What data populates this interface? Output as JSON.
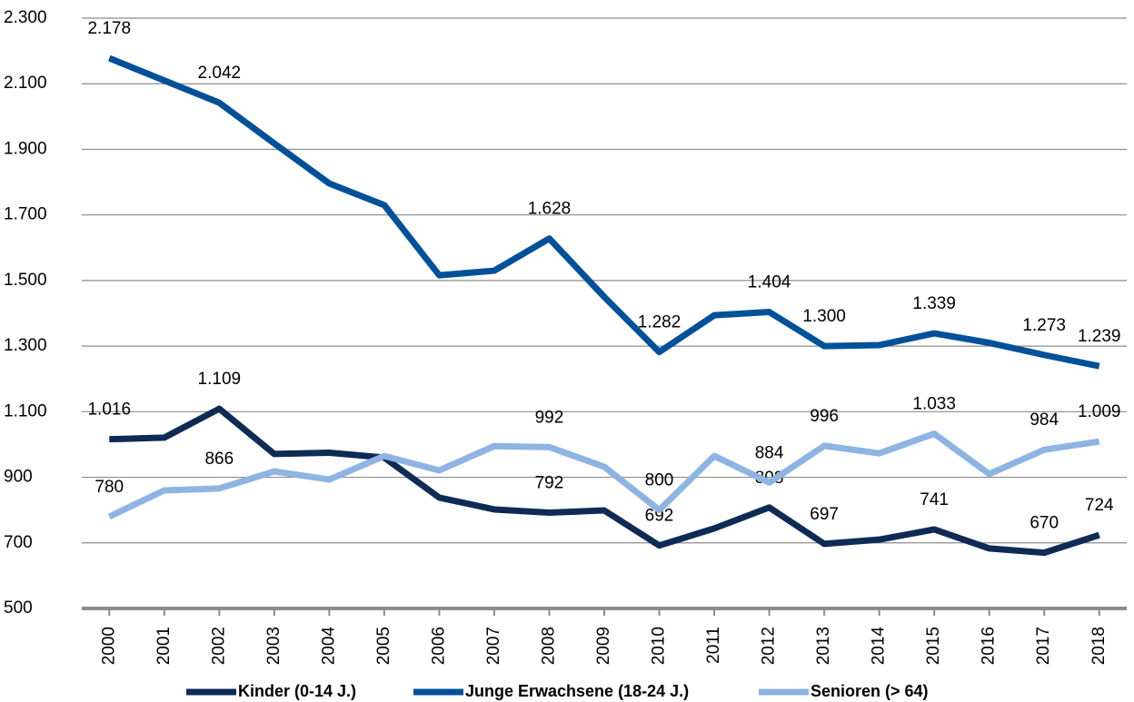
{
  "chart_data": {
    "type": "line",
    "categories": [
      "2000",
      "2001",
      "2002",
      "2003",
      "2004",
      "2005",
      "2006",
      "2007",
      "2008",
      "2009",
      "2010",
      "2011",
      "2012",
      "2013",
      "2014",
      "2015",
      "2016",
      "2017",
      "2018"
    ],
    "series": [
      {
        "name": "Kinder (0-14 J.)",
        "color": "#0d2b55",
        "values": [
          1016,
          1021,
          1109,
          971,
          975,
          960,
          838,
          802,
          792,
          799,
          692,
          744,
          808,
          697,
          710,
          741,
          683,
          670,
          724
        ],
        "value_labels": [
          "1.016",
          null,
          "1.109",
          null,
          null,
          null,
          null,
          null,
          "792",
          null,
          "692",
          null,
          "808",
          "697",
          null,
          "741",
          null,
          "670",
          "724"
        ]
      },
      {
        "name": "Junge Erwachsene (18-24 J.)",
        "color": "#00509a",
        "values": [
          2178,
          2110,
          2042,
          1918,
          1796,
          1730,
          1516,
          1530,
          1628,
          1450,
          1282,
          1394,
          1404,
          1300,
          1303,
          1339,
          1310,
          1273,
          1239
        ],
        "value_labels": [
          "2.178",
          null,
          "2.042",
          null,
          null,
          null,
          null,
          null,
          "1.628",
          null,
          "1.282",
          null,
          "1.404",
          "1.300",
          null,
          "1.339",
          null,
          "1.273",
          "1.239"
        ]
      },
      {
        "name": "Senioren (> 64)",
        "color": "#8db4e2",
        "values": [
          780,
          860,
          866,
          918,
          893,
          965,
          921,
          995,
          992,
          932,
          800,
          965,
          884,
          996,
          973,
          1033,
          910,
          984,
          1009
        ],
        "value_labels": [
          "780",
          null,
          "866",
          null,
          null,
          null,
          null,
          null,
          "992",
          null,
          "800",
          null,
          "884",
          "996",
          null,
          "1.033",
          null,
          "984",
          "1.009"
        ]
      }
    ],
    "ylim": [
      500,
      2300
    ],
    "yticks": [
      500,
      700,
      900,
      {
        "value": 1100,
        "label": "1.100"
      },
      {
        "value": 1300,
        "label": "1.300"
      },
      {
        "value": 1500,
        "label": "1.500"
      },
      {
        "value": 1700,
        "label": "1.700"
      },
      {
        "value": 1900,
        "label": "1.900"
      },
      {
        "value": 2100,
        "label": "2.100"
      },
      {
        "value": 2300,
        "label": "2.300"
      }
    ],
    "grid": true,
    "legend": "bottom"
  }
}
